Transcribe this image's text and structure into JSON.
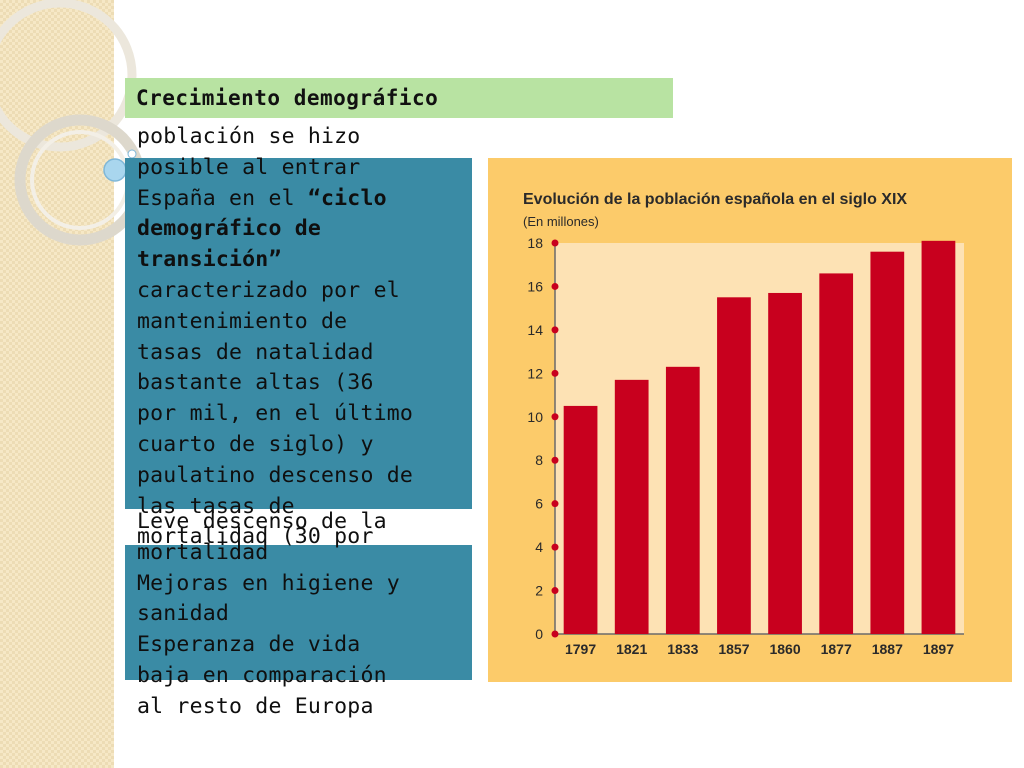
{
  "slide": {
    "title": "Crecimiento demográfico",
    "paragraph1_a": "población se hizo\nposible al entrar\nEspaña en el ",
    "paragraph1_b": "“ciclo\ndemográfico de\ntransición”",
    "paragraph1_c": "\ncaracterizado por el\nmantenimiento de\ntasas de natalidad\nbastante altas (36\npor mil, en el último\ncuarto de siglo) y\npaulatino descenso de\nlas tasas de\nmortalidad (30 por",
    "paragraph2": "Leve descenso de la\nmortalidad\nMejoras en higiene y\nsanidad\nEsperanza de vida\nbaja en comparación\nal resto de Europa"
  },
  "colors": {
    "title_bg": "#b8e3a2",
    "teal": "#3a8ba5",
    "chart_panel": "#fccb6a",
    "plot_bg": "#fde2b4",
    "bar": "#c8001e"
  },
  "chart_data": {
    "type": "bar",
    "title": "Evolución de la población española en el siglo XIX",
    "subtitle": "(En millones)",
    "categories": [
      "1797",
      "1821",
      "1833",
      "1857",
      "1860",
      "1877",
      "1887",
      "1897"
    ],
    "values": [
      10.5,
      11.7,
      12.3,
      15.5,
      15.7,
      16.6,
      17.6,
      18.1
    ],
    "ylim": [
      0,
      18
    ],
    "yticks": [
      "0",
      "2",
      "4",
      "6",
      "8",
      "10",
      "12",
      "14",
      "16",
      "18"
    ],
    "grid": false
  }
}
